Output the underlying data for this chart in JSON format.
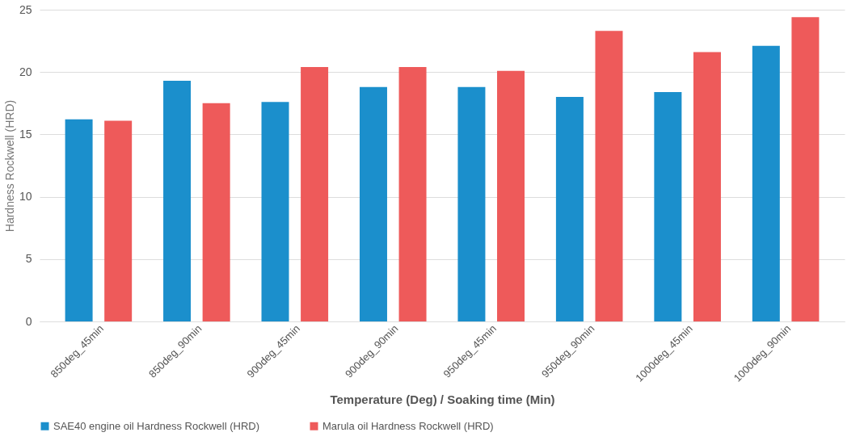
{
  "chart_data": {
    "type": "bar",
    "xlabel": "Temperature (Deg) / Soaking time (Min)",
    "ylabel": "Hardness Rockwell (HRD)",
    "categories": [
      "850deg_45min",
      "850deg_90min",
      "900deg_45min",
      "900deg_90min",
      "950deg_45min",
      "950deg_90min",
      "1000deg_45min",
      "1000deg_90min"
    ],
    "series": [
      {
        "name": "SAE40 engine oil Hardness Rockwell (HRD)",
        "color": "#1b8fcc",
        "values": [
          16.2,
          19.3,
          17.6,
          18.8,
          18.8,
          18.0,
          18.4,
          22.1
        ]
      },
      {
        "name": "Marula oil Hardness Rockwell (HRD)",
        "color": "#ee5a5a",
        "values": [
          16.1,
          17.5,
          20.4,
          20.4,
          20.1,
          23.3,
          21.6,
          24.4
        ]
      }
    ],
    "ylim": [
      0,
      25
    ],
    "yticks": [
      0,
      5,
      10,
      15,
      20,
      25
    ],
    "grid": "y",
    "legend": "bottom"
  }
}
